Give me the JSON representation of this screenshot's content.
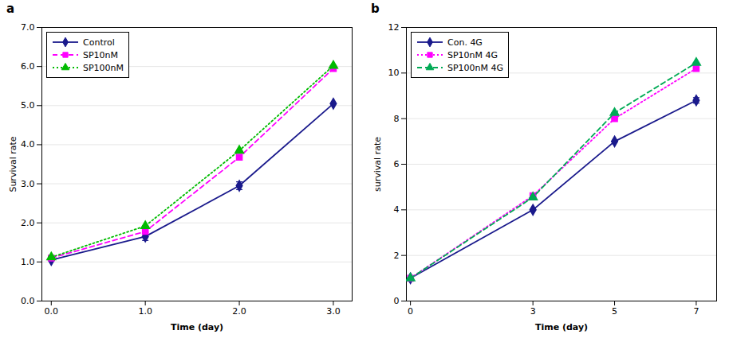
{
  "chart_data": [
    {
      "type": "line",
      "title": "a",
      "xlabel": "Time (day)",
      "ylabel": "Survival rate",
      "x": [
        0,
        1,
        2,
        3
      ],
      "xlim": [
        -0.1,
        3.2
      ],
      "xticks": [
        0,
        1,
        2,
        3
      ],
      "ylim": [
        0,
        7
      ],
      "yticks": [
        0,
        1,
        2,
        3,
        4,
        5,
        6,
        7
      ],
      "grid": "y",
      "legend": "upper left",
      "series": [
        {
          "name": "Control",
          "color": "#1a1a8c",
          "marker": "diamond",
          "line_style": "solid",
          "values": [
            1.05,
            1.65,
            2.95,
            5.05
          ],
          "yerr": [
            0.0,
            0.1,
            0.1,
            0.0
          ]
        },
        {
          "name": "SP10nM",
          "color": "#ff00ff",
          "marker": "square",
          "line_style": "dashed",
          "values": [
            1.1,
            1.78,
            3.68,
            5.95
          ],
          "yerr": [
            0.0,
            0.0,
            0.0,
            0.0
          ]
        },
        {
          "name": "SP100nM",
          "color": "#00bb00",
          "marker": "triangle",
          "line_style": "dotted",
          "values": [
            1.12,
            1.92,
            3.85,
            6.02
          ],
          "yerr": [
            0.0,
            0.0,
            0.0,
            0.0
          ]
        }
      ]
    },
    {
      "type": "line",
      "title": "b",
      "xlabel": "Time (day)",
      "ylabel": "survival rate",
      "x": [
        0,
        3,
        5,
        7
      ],
      "xlim": [
        -0.1,
        7.5
      ],
      "xticks": [
        0,
        3,
        5,
        7
      ],
      "ylim": [
        0,
        12
      ],
      "yticks": [
        0,
        2,
        4,
        6,
        8,
        10,
        12
      ],
      "grid": "y",
      "legend": "upper left",
      "series": [
        {
          "name": "Con. 4G",
          "color": "#1a1a8c",
          "marker": "diamond",
          "line_style": "solid",
          "values": [
            1.0,
            4.0,
            7.0,
            8.8
          ],
          "yerr": [
            0.0,
            0.0,
            0.0,
            0.12
          ]
        },
        {
          "name": "SP10nM 4G",
          "color": "#ff00ff",
          "marker": "square",
          "line_style": "dotted",
          "values": [
            1.0,
            4.62,
            8.0,
            10.2
          ],
          "yerr": [
            0.0,
            0.0,
            0.0,
            0.0
          ]
        },
        {
          "name": "SP100nM 4G",
          "color": "#00aa55",
          "marker": "triangle",
          "line_style": "dashed",
          "values": [
            1.0,
            4.55,
            8.25,
            10.45
          ],
          "yerr": [
            0.0,
            0.0,
            0.0,
            0.0
          ]
        }
      ]
    }
  ]
}
